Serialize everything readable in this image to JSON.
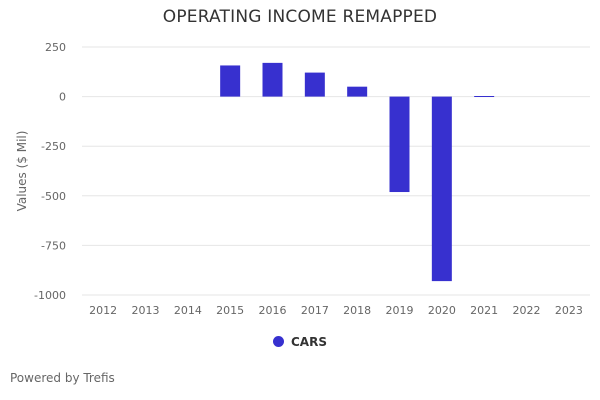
{
  "chart_data": {
    "type": "bar",
    "title": "OPERATING INCOME REMAPPED",
    "xlabel": "",
    "ylabel": "Values ($ Mil)",
    "categories": [
      "2012",
      "2013",
      "2014",
      "2015",
      "2016",
      "2017",
      "2018",
      "2019",
      "2020",
      "2021",
      "2022",
      "2023"
    ],
    "series": [
      {
        "name": "CARS",
        "color": "#3730cf",
        "values": [
          null,
          null,
          null,
          157,
          170,
          121,
          50,
          -481,
          -930,
          3,
          null,
          null
        ]
      }
    ],
    "ylim": [
      -1000,
      250
    ],
    "yticks": [
      250,
      0,
      -250,
      -500,
      -750,
      -1000
    ],
    "grid": true,
    "legend_position": "bottom"
  },
  "footer": {
    "credit": "Powered by Trefis"
  }
}
